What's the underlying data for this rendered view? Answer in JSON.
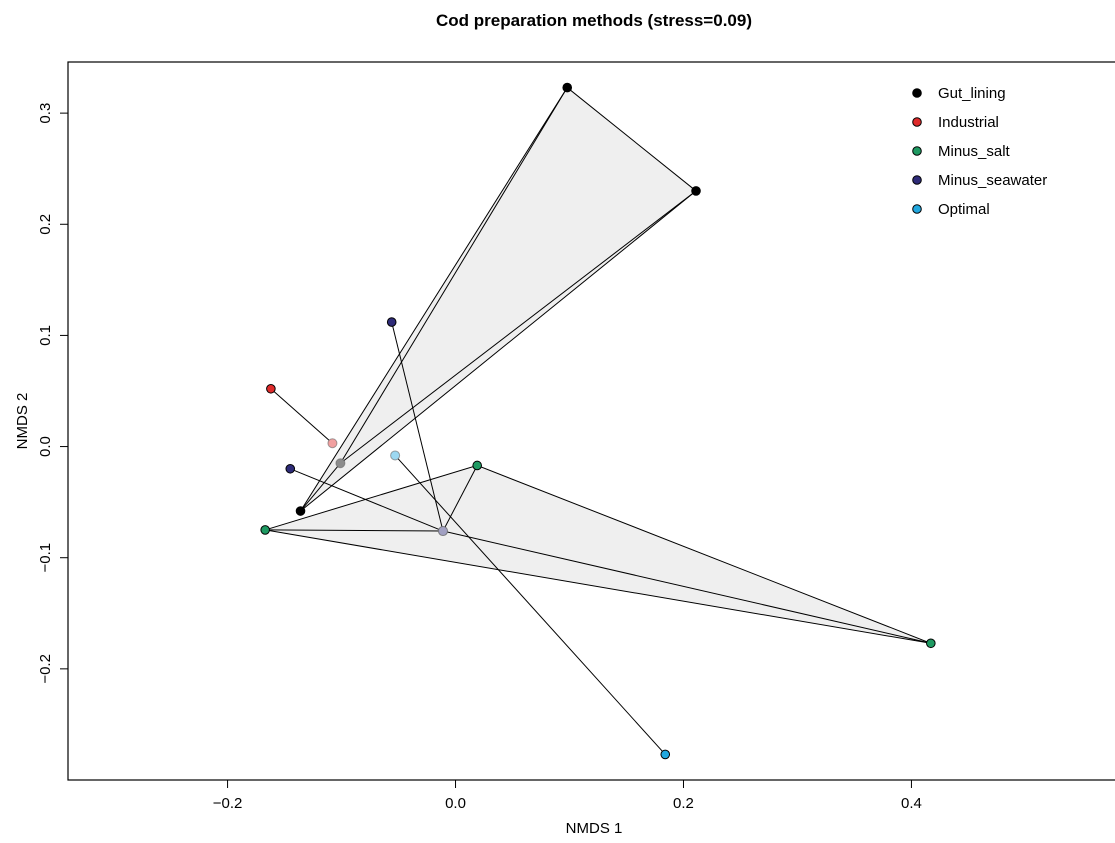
{
  "chart_data": {
    "type": "scatter",
    "title": "Cod preparation methods (stress=0.09)",
    "xlabel": "NMDS 1",
    "ylabel": "NMDS 2",
    "xlim": [
      -0.34,
      0.59
    ],
    "ylim": [
      -0.3,
      0.346
    ],
    "xticks": [
      -0.2,
      0.0,
      0.2,
      0.4
    ],
    "xtick_labels": [
      "−0.2",
      "0.0",
      "0.2",
      "0.4"
    ],
    "yticks": [
      -0.2,
      -0.1,
      0.0,
      0.1,
      0.2,
      0.3
    ],
    "ytick_labels": [
      "−0.2",
      "−0.1",
      "0.0",
      "0.1",
      "0.2",
      "0.3"
    ],
    "grid": false,
    "legend_position": "top-right",
    "groups": [
      {
        "name": "Gut_lining",
        "color": "#000000",
        "points": [
          [
            0.098,
            0.323
          ],
          [
            0.211,
            0.23
          ],
          [
            -0.136,
            -0.058
          ]
        ],
        "centroid": [
          -0.101,
          -0.015
        ],
        "hull": true
      },
      {
        "name": "Industrial",
        "color": "#df2b2b",
        "points": [
          [
            -0.162,
            0.052
          ]
        ],
        "centroid": [
          -0.108,
          0.003
        ],
        "hull": false
      },
      {
        "name": "Minus_salt",
        "color": "#1f9a62",
        "points": [
          [
            -0.167,
            -0.075
          ],
          [
            0.019,
            -0.017
          ],
          [
            0.417,
            -0.177
          ]
        ],
        "centroid": [
          -0.011,
          -0.076
        ],
        "hull": true
      },
      {
        "name": "Minus_seawater",
        "color": "#2e2b78",
        "points": [
          [
            -0.056,
            0.112
          ],
          [
            -0.145,
            -0.02
          ]
        ],
        "centroid": [
          -0.011,
          -0.076
        ],
        "hull": true
      },
      {
        "name": "Optimal",
        "color": "#22a8df",
        "points": [
          [
            0.184,
            -0.277
          ]
        ],
        "centroid": [
          -0.053,
          -0.008
        ],
        "hull": false
      }
    ]
  }
}
